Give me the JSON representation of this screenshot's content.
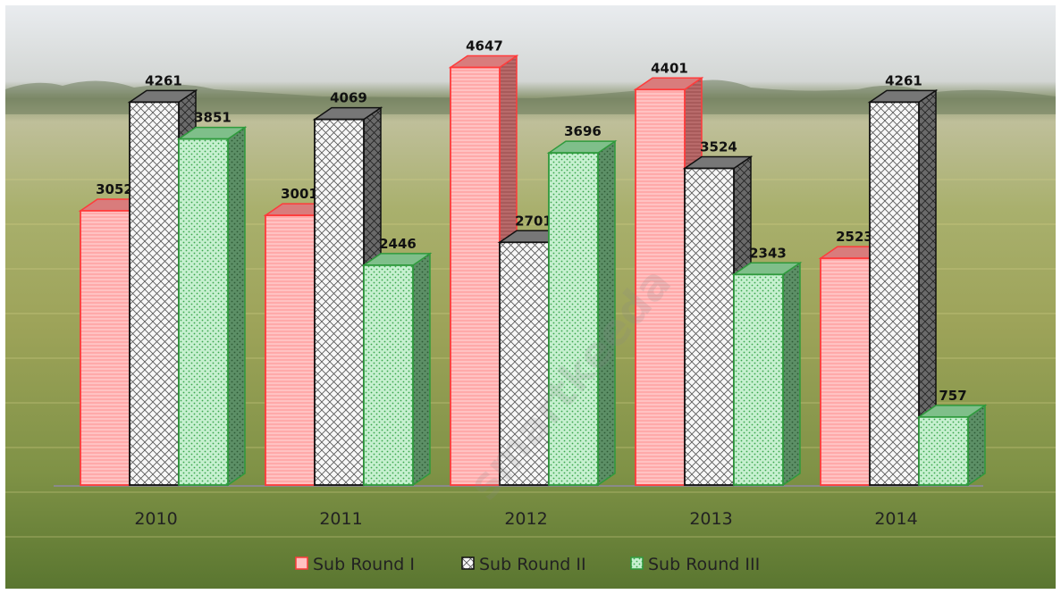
{
  "chart_data": {
    "type": "bar",
    "title": "",
    "xlabel": "",
    "ylabel": "",
    "categories": [
      "2010",
      "2011",
      "2012",
      "2013",
      "2014"
    ],
    "series": [
      {
        "name": "Sub Round I",
        "values": [
          3052,
          3001,
          4647,
          4401,
          2523
        ],
        "color": "#ff3b3b",
        "fill": "#ffc4c4"
      },
      {
        "name": "Sub Round II",
        "values": [
          4261,
          4069,
          2701,
          3524,
          4261
        ],
        "color": "#111111",
        "fill": "#f2f2f2"
      },
      {
        "name": "Sub Round III",
        "values": [
          3851,
          2446,
          3696,
          2343,
          757
        ],
        "color": "#2e9a3c",
        "fill": "#c8f0d2"
      }
    ],
    "ylim": [
      0,
      5000
    ],
    "grid": false,
    "legend": "bottom",
    "style": "3d-clustered-column with photo background",
    "watermark": "smartkeeda"
  }
}
